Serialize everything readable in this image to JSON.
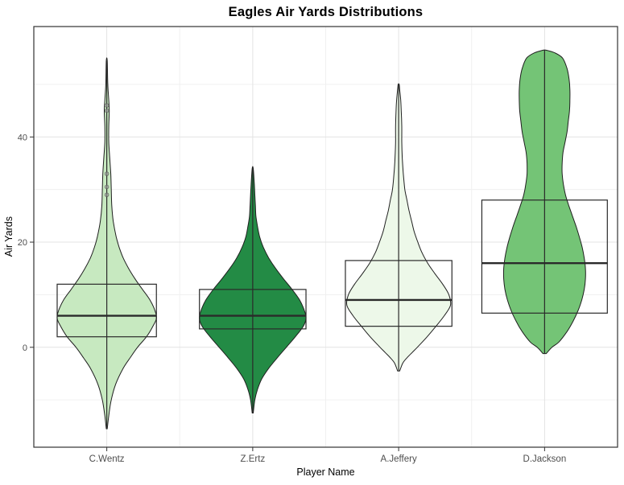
{
  "chart_data": {
    "type": "violin",
    "title": "Eagles Air Yards Distributions",
    "xlabel": "Player Name",
    "ylabel": "Air Yards",
    "ylim": [
      -19,
      61
    ],
    "y_major_ticks": [
      0,
      20,
      40
    ],
    "y_minor_ticks": [
      -10,
      10,
      30,
      50
    ],
    "grid": true,
    "legend": "none",
    "categories": [
      "C.Wentz",
      "Z.Ertz",
      "A.Jeffery",
      "D.Jackson"
    ],
    "series": [
      {
        "name": "C.Wentz",
        "fill": "#c7e9c0",
        "width": 0.68,
        "box_width": 0.68,
        "range": [
          -15.5,
          54.5
        ],
        "box": {
          "q1": 2,
          "median": 6,
          "q3": 12
        },
        "points": [
          29,
          30.5,
          33,
          45,
          46
        ],
        "density": [
          [
            -15.5,
            0.01
          ],
          [
            -13,
            0.04
          ],
          [
            -10,
            0.09
          ],
          [
            -7,
            0.18
          ],
          [
            -4,
            0.33
          ],
          [
            -2,
            0.47
          ],
          [
            0,
            0.62
          ],
          [
            2,
            0.8
          ],
          [
            4,
            0.93
          ],
          [
            5.5,
            1.0
          ],
          [
            7,
            0.97
          ],
          [
            9,
            0.87
          ],
          [
            11,
            0.72
          ],
          [
            13,
            0.57
          ],
          [
            15,
            0.44
          ],
          [
            17,
            0.33
          ],
          [
            19,
            0.25
          ],
          [
            21,
            0.19
          ],
          [
            24,
            0.13
          ],
          [
            27,
            0.1
          ],
          [
            30,
            0.09
          ],
          [
            33,
            0.08
          ],
          [
            36,
            0.06
          ],
          [
            39,
            0.04
          ],
          [
            42,
            0.04
          ],
          [
            45,
            0.05
          ],
          [
            47,
            0.04
          ],
          [
            50,
            0.02
          ],
          [
            54.5,
            0.01
          ]
        ]
      },
      {
        "name": "Z.Ertz",
        "fill": "#238b45",
        "width": 0.73,
        "box_width": 0.73,
        "range": [
          -12.5,
          34
        ],
        "box": {
          "q1": 3.5,
          "median": 6,
          "q3": 11
        },
        "points": [],
        "density": [
          [
            -12.5,
            0.01
          ],
          [
            -10,
            0.04
          ],
          [
            -8,
            0.09
          ],
          [
            -6,
            0.17
          ],
          [
            -4,
            0.3
          ],
          [
            -2,
            0.46
          ],
          [
            0,
            0.63
          ],
          [
            2,
            0.8
          ],
          [
            4,
            0.95
          ],
          [
            5.5,
            1.0
          ],
          [
            7,
            0.97
          ],
          [
            9,
            0.88
          ],
          [
            11,
            0.74
          ],
          [
            13,
            0.58
          ],
          [
            15,
            0.43
          ],
          [
            17,
            0.3
          ],
          [
            19,
            0.2
          ],
          [
            21,
            0.13
          ],
          [
            23,
            0.09
          ],
          [
            25,
            0.06
          ],
          [
            27,
            0.05
          ],
          [
            29,
            0.04
          ],
          [
            31,
            0.03
          ],
          [
            34,
            0.01
          ]
        ]
      },
      {
        "name": "A.Jeffery",
        "fill": "#edf8e9",
        "width": 0.71,
        "box_width": 0.73,
        "range": [
          -4.5,
          50
        ],
        "box": {
          "q1": 4,
          "median": 9,
          "q3": 16.5
        },
        "points": [],
        "density": [
          [
            -4.5,
            0.02
          ],
          [
            -3,
            0.08
          ],
          [
            -2,
            0.16
          ],
          [
            -1,
            0.26
          ],
          [
            0,
            0.36
          ],
          [
            2,
            0.55
          ],
          [
            4,
            0.72
          ],
          [
            6,
            0.88
          ],
          [
            8,
            1.0
          ],
          [
            10,
            0.97
          ],
          [
            12,
            0.85
          ],
          [
            14,
            0.7
          ],
          [
            16,
            0.56
          ],
          [
            18,
            0.45
          ],
          [
            20,
            0.37
          ],
          [
            22,
            0.3
          ],
          [
            24,
            0.25
          ],
          [
            26,
            0.2
          ],
          [
            28,
            0.16
          ],
          [
            30,
            0.12
          ],
          [
            33,
            0.09
          ],
          [
            36,
            0.07
          ],
          [
            39,
            0.06
          ],
          [
            42,
            0.06
          ],
          [
            45,
            0.05
          ],
          [
            47,
            0.04
          ],
          [
            49,
            0.02
          ],
          [
            50,
            0.01
          ]
        ]
      },
      {
        "name": "D.Jackson",
        "fill": "#74c476",
        "width": 0.56,
        "box_width": 0.86,
        "range": [
          -1.2,
          56.5
        ],
        "box": {
          "q1": 6.5,
          "median": 16,
          "q3": 28
        },
        "points": [],
        "density": [
          [
            -1.2,
            0.04
          ],
          [
            0,
            0.18
          ],
          [
            1,
            0.35
          ],
          [
            3,
            0.55
          ],
          [
            5,
            0.7
          ],
          [
            7,
            0.82
          ],
          [
            9,
            0.91
          ],
          [
            11,
            0.97
          ],
          [
            13,
            1.0
          ],
          [
            15,
            1.0
          ],
          [
            17,
            0.97
          ],
          [
            19,
            0.92
          ],
          [
            21,
            0.85
          ],
          [
            23,
            0.77
          ],
          [
            25,
            0.68
          ],
          [
            27,
            0.59
          ],
          [
            29,
            0.51
          ],
          [
            31,
            0.46
          ],
          [
            33,
            0.43
          ],
          [
            35,
            0.43
          ],
          [
            37,
            0.45
          ],
          [
            39,
            0.5
          ],
          [
            41,
            0.55
          ],
          [
            43,
            0.58
          ],
          [
            45,
            0.61
          ],
          [
            47,
            0.62
          ],
          [
            49,
            0.62
          ],
          [
            51,
            0.6
          ],
          [
            53,
            0.55
          ],
          [
            55,
            0.44
          ],
          [
            56,
            0.25
          ],
          [
            56.5,
            0.04
          ]
        ]
      }
    ]
  },
  "style": {
    "panel_border": "#333333",
    "grid_major": "#e3e3e3",
    "grid_minor": "#f0f0f0",
    "tick_label_color": "#4d4d4d",
    "axis_title_color": "#000000",
    "outline": "#1f1f1f",
    "box_color": "#2a2a2a",
    "point_fill": "#9a9a9a",
    "point_stroke": "#555555"
  }
}
